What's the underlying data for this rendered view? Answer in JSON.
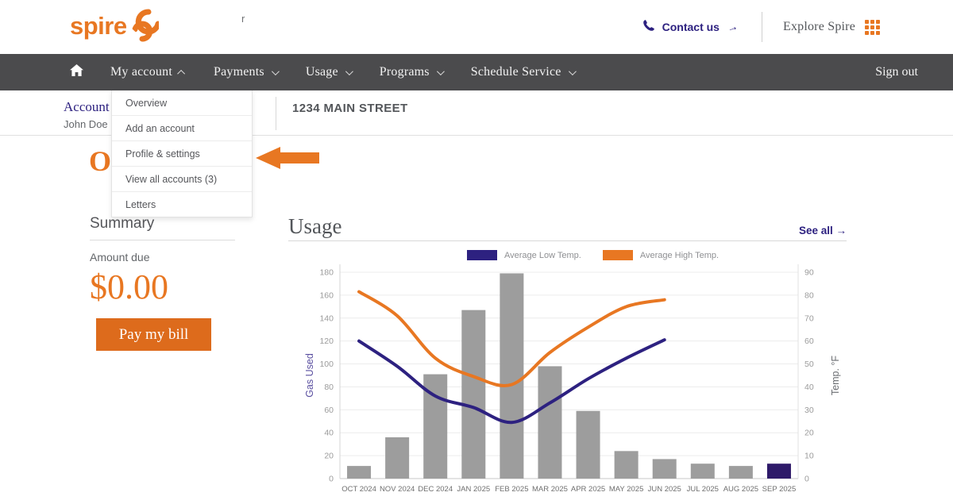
{
  "header": {
    "brand": "spire",
    "contact_label": "Contact us",
    "contact_arrow": "→",
    "explore_label": "Explore Spire"
  },
  "nav": {
    "items": [
      {
        "label": "My account"
      },
      {
        "label": "Payments"
      },
      {
        "label": "Usage"
      },
      {
        "label": "Programs"
      },
      {
        "label": "Schedule Service"
      }
    ],
    "sign_out": "Sign out"
  },
  "account_bar": {
    "label": "Account",
    "label_tail": "r",
    "holder": "John Doe",
    "address": "1234 MAIN STREET"
  },
  "dropdown": {
    "items": [
      {
        "label": "Overview"
      },
      {
        "label": "Add an account"
      },
      {
        "label": "Profile & settings"
      },
      {
        "label": "View all accounts (3)"
      },
      {
        "label": "Letters"
      }
    ]
  },
  "page": {
    "title": "Overview"
  },
  "summary": {
    "heading": "Summary",
    "amount_label": "Amount due",
    "amount": "$0.00",
    "pay_button": "Pay my bill"
  },
  "usage": {
    "heading": "Usage",
    "see_all": "See all →"
  },
  "colors": {
    "brand_orange": "#e87722",
    "navy": "#2d2180",
    "nav_gray": "#4b4b4d",
    "bar_gray": "#9d9d9d",
    "highlight_bar": "#2e1a69"
  },
  "chart_data": {
    "type": "bar+line",
    "categories": [
      "OCT 2024",
      "NOV 2024",
      "DEC 2024",
      "JAN 2025",
      "FEB 2025",
      "MAR 2025",
      "APR 2025",
      "MAY 2025",
      "JUN 2025",
      "JUL 2025",
      "AUG 2025",
      "SEP 2025"
    ],
    "bars": {
      "name": "Gas Used",
      "values": [
        11,
        36,
        91,
        147,
        179,
        98,
        59,
        24,
        17,
        13,
        11,
        13
      ],
      "color": "#9d9d9d",
      "highlight_index": 11,
      "highlight_color": "#2e1a69"
    },
    "series": [
      {
        "name": "Average Low Temp.",
        "color": "#2d2180",
        "axis": "right",
        "values": [
          60,
          49,
          36,
          31,
          24.5,
          33,
          43.5,
          52.5,
          60.5
        ]
      },
      {
        "name": "Average High Temp.",
        "color": "#e87722",
        "axis": "right",
        "values": [
          81.5,
          71,
          52.5,
          44.5,
          41,
          55,
          66,
          75,
          78
        ]
      }
    ],
    "left_axis": {
      "label": "Gas Used",
      "min": 0,
      "max": 180,
      "step": 20,
      "label_color": "#5a4fa0"
    },
    "right_axis": {
      "label": "Temp. °F",
      "min": 0,
      "max": 90,
      "step": 10,
      "label_color": "#6b6e72"
    },
    "grid": true,
    "legend_position": "top"
  }
}
